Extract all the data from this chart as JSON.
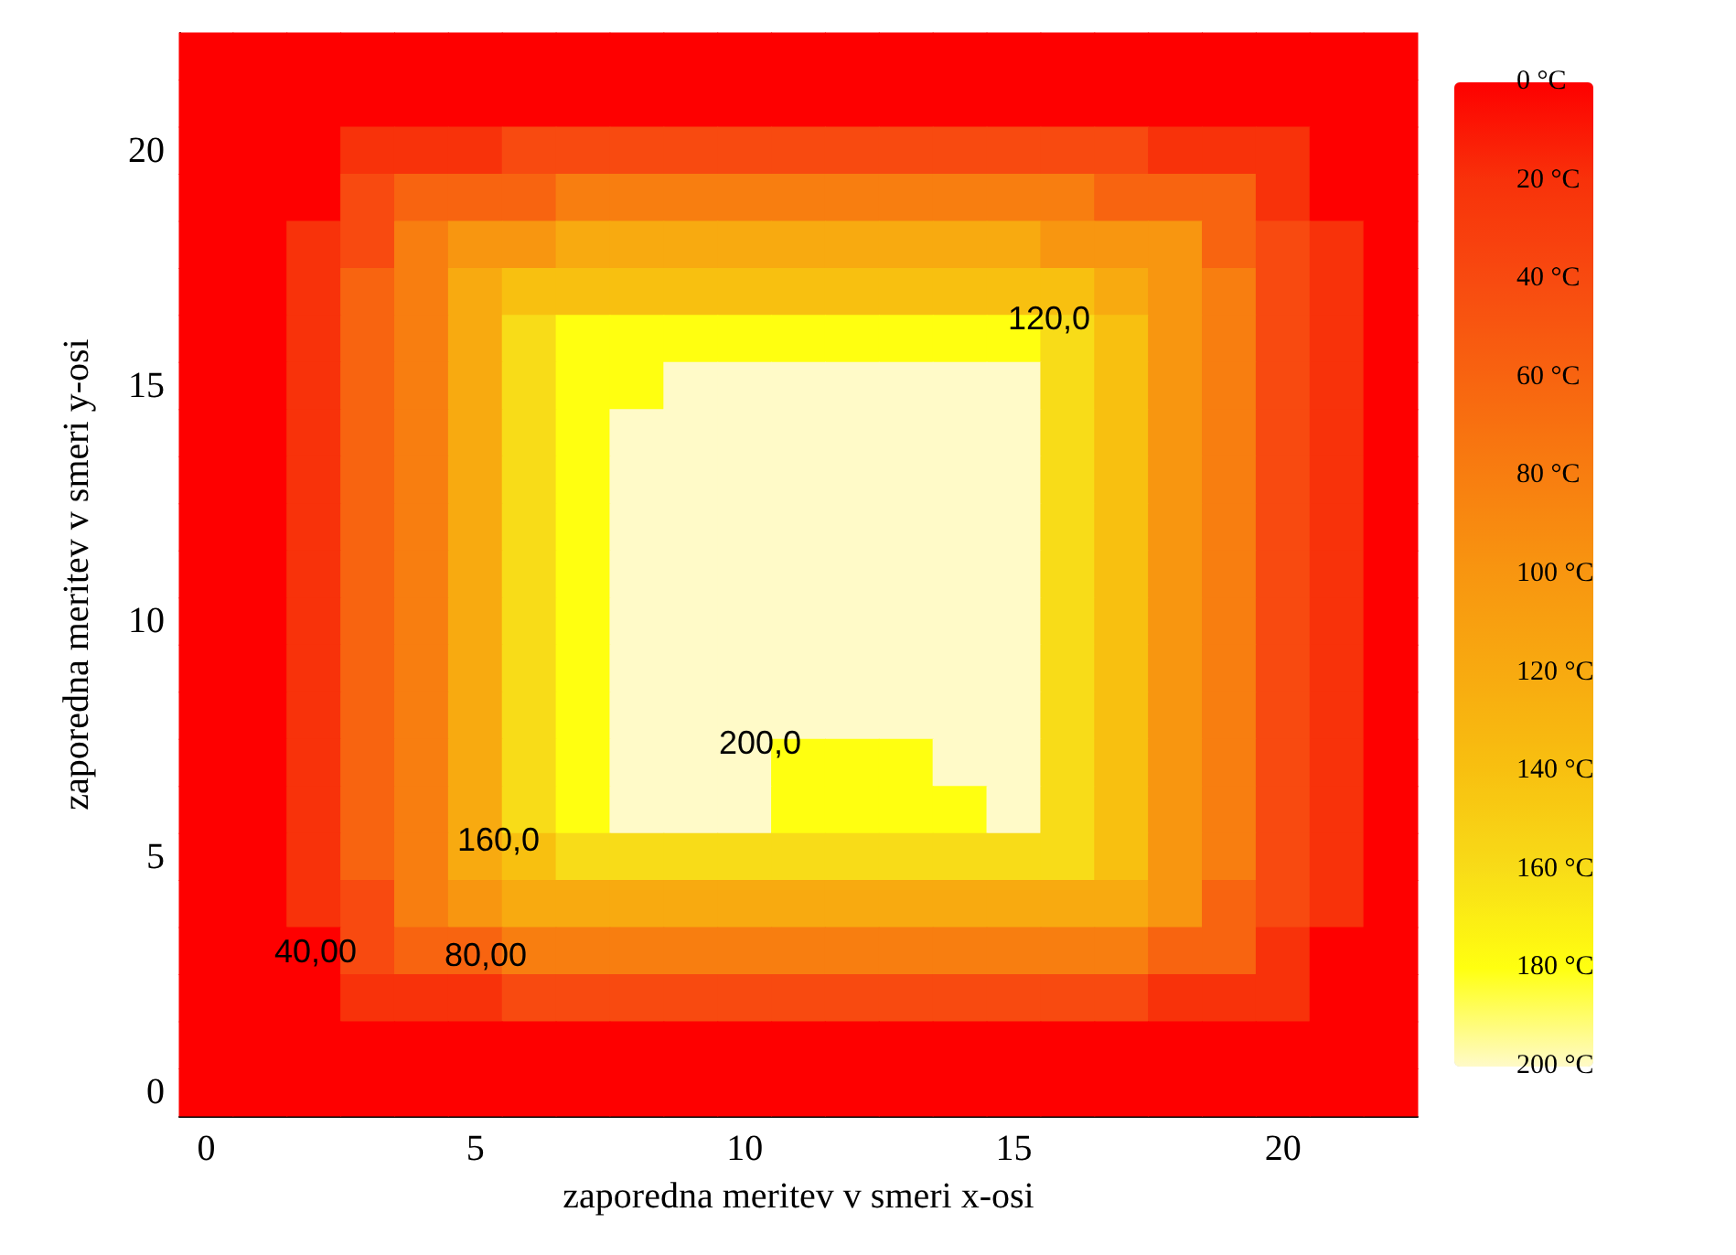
{
  "chart_data": {
    "type": "heatmap",
    "xlabel": "zaporedna meritev v smeri x-osi",
    "ylabel": "zaporedna meritev v smeri y-osi",
    "categories": [
      "0",
      null,
      null,
      null,
      null,
      "5",
      null,
      null,
      null,
      null,
      "10",
      null,
      null,
      null,
      null,
      "15",
      null,
      null,
      null,
      null,
      "20",
      null,
      null
    ],
    "y_categories": [
      null,
      null,
      "20",
      null,
      null,
      null,
      null,
      "15",
      null,
      null,
      null,
      null,
      "10",
      null,
      null,
      null,
      null,
      "5",
      null,
      null,
      null,
      null,
      "0"
    ],
    "cells": [
      [
        0,
        0,
        0,
        0,
        0,
        0,
        0,
        0,
        0,
        0,
        0,
        0,
        0,
        0,
        0,
        0,
        0,
        0,
        0,
        0,
        0,
        0,
        0
      ],
      [
        0,
        0,
        0,
        0,
        0,
        0,
        0,
        0,
        0,
        0,
        0,
        0,
        0,
        0,
        0,
        0,
        0,
        0,
        0,
        0,
        0,
        0,
        0
      ],
      [
        0,
        0,
        0,
        20,
        20,
        20,
        40,
        40,
        40,
        40,
        40,
        40,
        40,
        40,
        40,
        40,
        40,
        40,
        20,
        20,
        20,
        0,
        0
      ],
      [
        0,
        0,
        0,
        40,
        60,
        60,
        60,
        80,
        80,
        80,
        80,
        80,
        80,
        80,
        80,
        80,
        80,
        60,
        60,
        60,
        20,
        0,
        0
      ],
      [
        0,
        0,
        20,
        40,
        80,
        100,
        100,
        120,
        120,
        120,
        120,
        120,
        120,
        120,
        120,
        120,
        100,
        100,
        100,
        60,
        40,
        20,
        0
      ],
      [
        0,
        0,
        20,
        60,
        80,
        120,
        140,
        140,
        140,
        140,
        140,
        140,
        140,
        140,
        140,
        140,
        140,
        120,
        100,
        80,
        40,
        20,
        0
      ],
      [
        0,
        0,
        20,
        60,
        80,
        120,
        160,
        180,
        180,
        180,
        180,
        180,
        180,
        180,
        180,
        180,
        160,
        140,
        100,
        80,
        40,
        20,
        0
      ],
      [
        0,
        0,
        20,
        60,
        80,
        120,
        160,
        180,
        180,
        200,
        200,
        200,
        200,
        200,
        200,
        200,
        160,
        140,
        100,
        80,
        40,
        20,
        0
      ],
      [
        0,
        0,
        20,
        60,
        80,
        120,
        160,
        180,
        200,
        200,
        200,
        200,
        200,
        200,
        200,
        200,
        160,
        140,
        100,
        80,
        40,
        20,
        0
      ],
      [
        0,
        0,
        20,
        60,
        80,
        120,
        160,
        180,
        200,
        200,
        200,
        200,
        200,
        200,
        200,
        200,
        160,
        140,
        100,
        80,
        40,
        20,
        0
      ],
      [
        0,
        0,
        20,
        60,
        80,
        120,
        160,
        180,
        200,
        200,
        200,
        200,
        200,
        200,
        200,
        200,
        160,
        140,
        100,
        80,
        40,
        20,
        0
      ],
      [
        0,
        0,
        20,
        60,
        80,
        120,
        160,
        180,
        200,
        200,
        200,
        200,
        200,
        200,
        200,
        200,
        160,
        140,
        100,
        80,
        40,
        20,
        0
      ],
      [
        0,
        0,
        20,
        60,
        80,
        120,
        160,
        180,
        200,
        200,
        200,
        200,
        200,
        200,
        200,
        200,
        160,
        140,
        100,
        80,
        40,
        20,
        0
      ],
      [
        0,
        0,
        20,
        60,
        80,
        120,
        160,
        180,
        200,
        200,
        200,
        200,
        200,
        200,
        200,
        200,
        160,
        140,
        100,
        80,
        40,
        20,
        0
      ],
      [
        0,
        0,
        20,
        60,
        80,
        120,
        160,
        180,
        200,
        200,
        200,
        200,
        200,
        200,
        200,
        200,
        160,
        140,
        100,
        80,
        40,
        20,
        0
      ],
      [
        0,
        0,
        20,
        60,
        80,
        120,
        160,
        180,
        200,
        200,
        200,
        180,
        180,
        180,
        200,
        200,
        160,
        140,
        100,
        80,
        40,
        20,
        0
      ],
      [
        0,
        0,
        20,
        60,
        80,
        120,
        160,
        180,
        200,
        200,
        200,
        180,
        180,
        180,
        180,
        200,
        160,
        140,
        100,
        80,
        40,
        20,
        0
      ],
      [
        0,
        0,
        20,
        60,
        80,
        120,
        140,
        160,
        160,
        160,
        160,
        160,
        160,
        160,
        160,
        160,
        160,
        140,
        100,
        80,
        40,
        20,
        0
      ],
      [
        0,
        0,
        20,
        40,
        80,
        100,
        120,
        120,
        120,
        120,
        120,
        120,
        120,
        120,
        120,
        120,
        120,
        120,
        100,
        60,
        40,
        20,
        0
      ],
      [
        0,
        0,
        0,
        40,
        60,
        60,
        80,
        80,
        80,
        80,
        80,
        80,
        80,
        80,
        80,
        80,
        80,
        80,
        60,
        60,
        20,
        0,
        0
      ],
      [
        0,
        0,
        0,
        20,
        20,
        20,
        40,
        40,
        40,
        40,
        40,
        40,
        40,
        40,
        40,
        40,
        40,
        40,
        20,
        20,
        20,
        0,
        0
      ],
      [
        0,
        0,
        0,
        0,
        0,
        0,
        0,
        0,
        0,
        0,
        0,
        0,
        0,
        0,
        0,
        0,
        0,
        0,
        0,
        0,
        0,
        0,
        0
      ],
      [
        0,
        0,
        0,
        0,
        0,
        0,
        0,
        0,
        0,
        0,
        0,
        0,
        0,
        0,
        0,
        0,
        0,
        0,
        0,
        0,
        0,
        0,
        0
      ]
    ],
    "colors": [
      "#fe0000",
      "#f8320a",
      "#f84a10",
      "#f86410",
      "#f87e10",
      "#f89610",
      "#f8aa10",
      "#f8c010",
      "#f8dc18",
      "#ffff10",
      "#fffac8"
    ],
    "clim": [
      0,
      200
    ],
    "cticks": [
      {
        "value": 0,
        "label": "0 °C"
      },
      {
        "value": 20,
        "label": "20 °C"
      },
      {
        "value": 40,
        "label": "40 °C"
      },
      {
        "value": 60,
        "label": "60 °C"
      },
      {
        "value": 80,
        "label": "80 °C"
      },
      {
        "value": 100,
        "label": "100 °C"
      },
      {
        "value": 120,
        "label": "120 °C"
      },
      {
        "value": 140,
        "label": "140 °C"
      },
      {
        "value": 160,
        "label": "160 °C"
      },
      {
        "value": 180,
        "label": "180 °C"
      },
      {
        "value": 200,
        "label": "200 °C"
      }
    ],
    "annotations": [
      "40,00",
      "80,00",
      "120,0",
      "160,0",
      "200,0"
    ]
  }
}
